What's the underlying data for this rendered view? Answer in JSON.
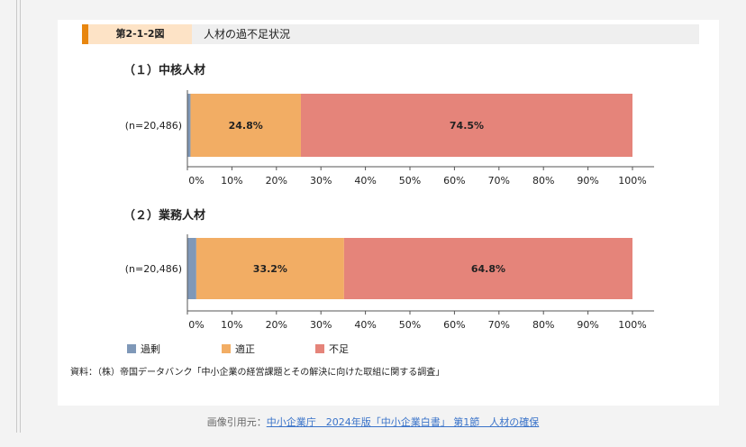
{
  "header": {
    "figure_number": "第2-1-2図",
    "figure_title": "人材の過不足状況"
  },
  "chart_data": [
    {
      "type": "bar",
      "orientation": "horizontal",
      "stacked": true,
      "title": "（１）中核人材",
      "categories": [
        "(n=20,486)"
      ],
      "series": [
        {
          "name": "過剰",
          "values": [
            0.7
          ],
          "color": "#7f98b8"
        },
        {
          "name": "適正",
          "values": [
            24.8
          ],
          "color": "#f2ad64"
        },
        {
          "name": "不足",
          "values": [
            74.5
          ],
          "color": "#e5847a"
        }
      ],
      "data_labels": [
        "",
        "24.8%",
        "74.5%"
      ],
      "xlim": [
        0,
        100
      ],
      "x_ticks": [
        "0%",
        "10%",
        "20%",
        "30%",
        "40%",
        "50%",
        "60%",
        "70%",
        "80%",
        "90%",
        "100%"
      ]
    },
    {
      "type": "bar",
      "orientation": "horizontal",
      "stacked": true,
      "title": "（２）業務人材",
      "categories": [
        "(n=20,486)"
      ],
      "series": [
        {
          "name": "過剰",
          "values": [
            2.0
          ],
          "color": "#7f98b8"
        },
        {
          "name": "適正",
          "values": [
            33.2
          ],
          "color": "#f2ad64"
        },
        {
          "name": "不足",
          "values": [
            64.8
          ],
          "color": "#e5847a"
        }
      ],
      "data_labels": [
        "",
        "33.2%",
        "64.8%"
      ],
      "xlim": [
        0,
        100
      ],
      "x_ticks": [
        "0%",
        "10%",
        "20%",
        "30%",
        "40%",
        "50%",
        "60%",
        "70%",
        "80%",
        "90%",
        "100%"
      ]
    }
  ],
  "legend": [
    {
      "label": "過剰",
      "color": "#7f98b8"
    },
    {
      "label": "適正",
      "color": "#f2ad64"
    },
    {
      "label": "不足",
      "color": "#e5847a"
    }
  ],
  "source": "資料：（株）帝国データバンク「中小企業の経営課題とその解決に向けた取組に関する調査」",
  "credit": {
    "prefix": "画像引用元：",
    "link_text": "中小企業庁　2024年版「中小企業白書」 第1節　人材の確保"
  }
}
